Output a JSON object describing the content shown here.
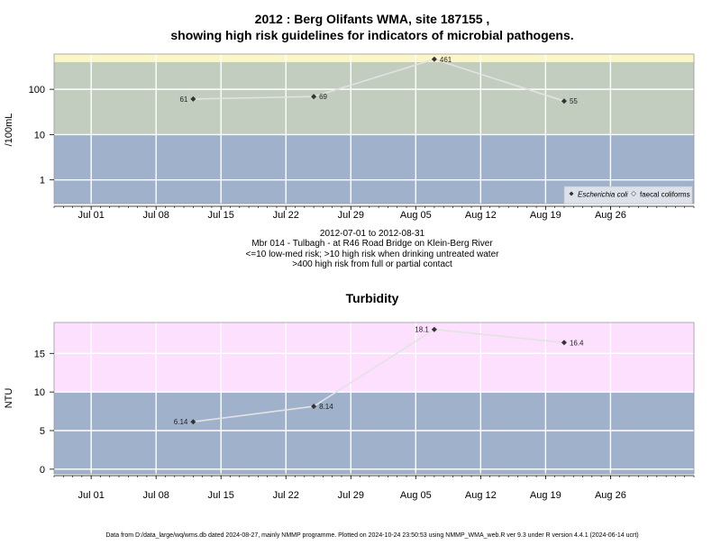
{
  "chart_data": [
    {
      "type": "line",
      "title": "2012 : Berg Olifants WMA, site 187155 ,",
      "subtitle": "showing high risk guidelines for indicators of microbial pathogens.",
      "ylabel": "/100mL",
      "yscale": "log",
      "ylim": [
        0.3,
        600
      ],
      "xlim": [
        "2012-06-27",
        "2012-09-04"
      ],
      "x_ticks": [
        {
          "date": "2012-07-01",
          "label": "Jul 01"
        },
        {
          "date": "2012-07-08",
          "label": "Jul 08"
        },
        {
          "date": "2012-07-15",
          "label": "Jul 15"
        },
        {
          "date": "2012-07-22",
          "label": "Jul 22"
        },
        {
          "date": "2012-07-29",
          "label": "Jul 29"
        },
        {
          "date": "2012-08-05",
          "label": "Aug 05"
        },
        {
          "date": "2012-08-12",
          "label": "Aug 12"
        },
        {
          "date": "2012-08-19",
          "label": "Aug 19"
        },
        {
          "date": "2012-08-26",
          "label": "Aug 26"
        }
      ],
      "y_ticks": [
        {
          "value": 1,
          "label": "1"
        },
        {
          "value": 10,
          "label": "10"
        },
        {
          "value": 100,
          "label": "100"
        }
      ],
      "bands": [
        {
          "from": 0.3,
          "to": 10,
          "color": "#a0b1cb"
        },
        {
          "from": 10,
          "to": 400,
          "color": "#c2cdbf"
        },
        {
          "from": 400,
          "to": 600,
          "color": "#fbf6c8"
        }
      ],
      "series": [
        {
          "name": "Escherichia coli",
          "color": "#333333",
          "points": [
            {
              "x": "2012-07-12",
              "y": 61,
              "label": "61"
            },
            {
              "x": "2012-07-25",
              "y": 69,
              "label": "69"
            },
            {
              "x": "2012-08-07",
              "y": 461,
              "label": "461"
            },
            {
              "x": "2012-08-21",
              "y": 55,
              "label": "55"
            }
          ]
        },
        {
          "name": "faecal coliforms",
          "color": "#ffffff",
          "points": []
        }
      ],
      "legend": "bottom-right",
      "grid": true,
      "caption_lines": [
        "2012-07-01 to 2012-08-31",
        "Mbr 014 - Tulbagh - at R46 Road Bridge on Klein-Berg River",
        "<=10 low-med risk; >10 high risk when drinking untreated water",
        ">400 high risk from full or partial contact"
      ]
    },
    {
      "type": "line",
      "title": "Turbidity",
      "ylabel": "NTU",
      "ylim": [
        -0.6,
        19
      ],
      "xlim": [
        "2012-06-27",
        "2012-09-04"
      ],
      "x_ticks": [
        {
          "date": "2012-07-01",
          "label": "Jul 01"
        },
        {
          "date": "2012-07-08",
          "label": "Jul 08"
        },
        {
          "date": "2012-07-15",
          "label": "Jul 15"
        },
        {
          "date": "2012-07-22",
          "label": "Jul 22"
        },
        {
          "date": "2012-07-29",
          "label": "Jul 29"
        },
        {
          "date": "2012-08-05",
          "label": "Aug 05"
        },
        {
          "date": "2012-08-12",
          "label": "Aug 12"
        },
        {
          "date": "2012-08-19",
          "label": "Aug 19"
        },
        {
          "date": "2012-08-26",
          "label": "Aug 26"
        }
      ],
      "y_ticks": [
        {
          "value": 0,
          "label": "0"
        },
        {
          "value": 5,
          "label": "5"
        },
        {
          "value": 10,
          "label": "10"
        },
        {
          "value": 15,
          "label": "15"
        }
      ],
      "bands": [
        {
          "from": -0.6,
          "to": 10,
          "color": "#a0b1cb"
        },
        {
          "from": 10,
          "to": 19,
          "color": "#fde0fd"
        }
      ],
      "series": [
        {
          "name": "",
          "color": "#333333",
          "points": [
            {
              "x": "2012-07-12",
              "y": 6.14,
              "label": "6.14"
            },
            {
              "x": "2012-07-25",
              "y": 8.14,
              "label": "8.14"
            },
            {
              "x": "2012-08-07",
              "y": 18.1,
              "label": "18.1"
            },
            {
              "x": "2012-08-21",
              "y": 16.4,
              "label": "16.4"
            }
          ]
        }
      ],
      "grid": true
    }
  ],
  "footer": "Data from D:/data_large/wq/wms.db dated 2024-08-27, mainly NMMP programme. Plotted on 2024-10-24 23:50:53 using NMMP_WMA_web.R ver 9.3 under R version 4.4.1 (2024-06-14 ucrt)"
}
